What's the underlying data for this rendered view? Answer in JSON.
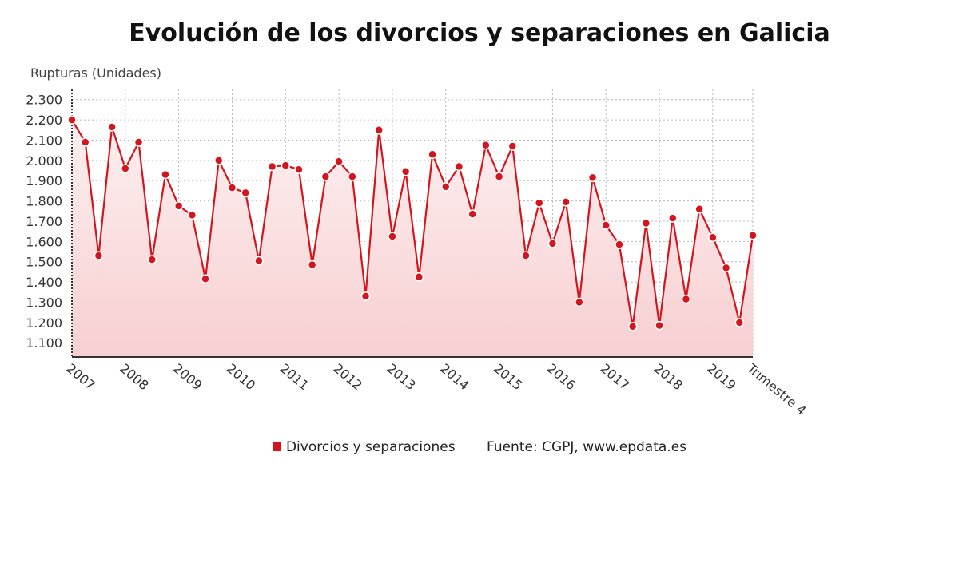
{
  "chart_data": {
    "type": "line",
    "title": "Evolución de los divorcios y separaciones en Galicia",
    "ylabel": "Rupturas (Unidades)",
    "xlabel": "",
    "ylim": [
      1030,
      2350
    ],
    "yticks": [
      1100,
      1200,
      1300,
      1400,
      1500,
      1600,
      1700,
      1800,
      1900,
      2000,
      2100,
      2200,
      2300
    ],
    "ytick_labels": [
      "1.100",
      "1.200",
      "1.300",
      "1.400",
      "1.500",
      "1.600",
      "1.700",
      "1.800",
      "1.900",
      "2.000",
      "2.100",
      "2.200",
      "2.300"
    ],
    "xtick_labels": [
      "2007",
      "2008",
      "2009",
      "2010",
      "2011",
      "2012",
      "2013",
      "2014",
      "2015",
      "2016",
      "2017",
      "2018",
      "2019",
      "Trimestre 4"
    ],
    "grid": true,
    "legend_position": "bottom",
    "series": [
      {
        "name": "Divorcios y separaciones",
        "color": "#d3151d",
        "values": [
          2200,
          2090,
          1530,
          2165,
          1960,
          2090,
          1510,
          1930,
          1775,
          1730,
          1415,
          2000,
          1865,
          1840,
          1505,
          1970,
          1975,
          1955,
          1485,
          1920,
          1995,
          1920,
          1330,
          2150,
          1625,
          1945,
          1425,
          2030,
          1870,
          1970,
          1735,
          2075,
          1920,
          2070,
          1530,
          1790,
          1590,
          1795,
          1300,
          1915,
          1680,
          1585,
          1180,
          1690,
          1185,
          1715,
          1315,
          1760,
          1620,
          1470,
          1200,
          1630
        ]
      }
    ],
    "source": "Fuente: CGPJ, www.epdata.es"
  }
}
